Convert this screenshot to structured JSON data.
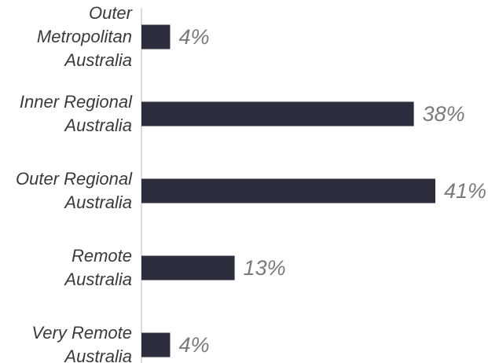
{
  "chart_data": {
    "type": "bar",
    "orientation": "horizontal",
    "categories": [
      "Outer Metropolitan Australia",
      "Inner Regional Australia",
      "Outer Regional Australia",
      "Remote Australia",
      "Very Remote Australia"
    ],
    "values": [
      4,
      38,
      41,
      13,
      4
    ],
    "value_labels": [
      "4%",
      "38%",
      "41%",
      "13%",
      "4%"
    ],
    "color": "#2b2d3c"
  }
}
